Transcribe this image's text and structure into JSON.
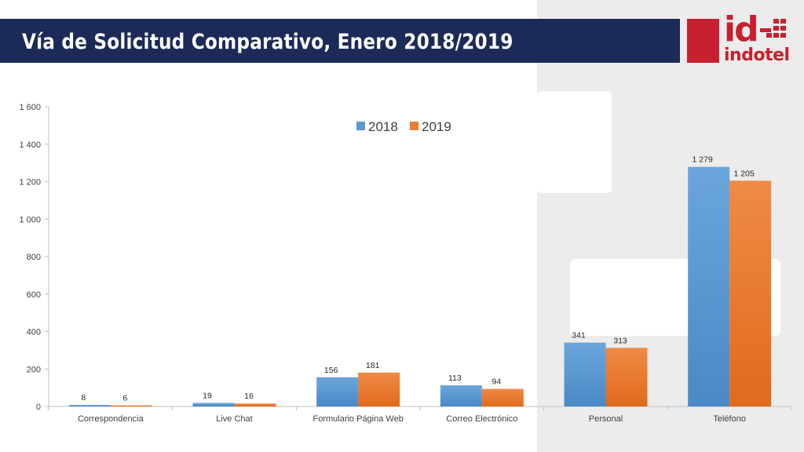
{
  "slide": {
    "title": "Vía de Solicitud Comparativo, Enero 2018/2019",
    "logo_text": "indotel",
    "logo_mark": "id"
  },
  "colors": {
    "title_bg": "#1b2a57",
    "brand_red": "#c8202e",
    "series_2018": "#5b9bd5",
    "series_2019": "#ed7d31"
  },
  "chart_data": {
    "type": "bar",
    "categories": [
      "Correspondencia",
      "Live Chat",
      "Formulario Página Web",
      "Correo Electrónico",
      "Personal",
      "Teléfono"
    ],
    "series": [
      {
        "name": "2018",
        "values": [
          8,
          19,
          156,
          113,
          341,
          1279
        ],
        "labels": [
          "8",
          "19",
          "156",
          "113",
          "341",
          "1 279"
        ]
      },
      {
        "name": "2019",
        "values": [
          6,
          16,
          181,
          94,
          313,
          1205
        ],
        "labels": [
          "6",
          "16",
          "181",
          "94",
          "313",
          "1 205"
        ]
      }
    ],
    "y_ticks": [
      0,
      200,
      400,
      600,
      800,
      1000,
      1200,
      1400,
      1600
    ],
    "y_tick_labels": [
      "0",
      "200",
      "400",
      "600",
      "800",
      "1 000",
      "1 200",
      "1 400",
      "1 600"
    ],
    "ylim": [
      0,
      1600
    ],
    "grid": false,
    "legend_position": "top-center",
    "title": "",
    "xlabel": "",
    "ylabel": ""
  }
}
